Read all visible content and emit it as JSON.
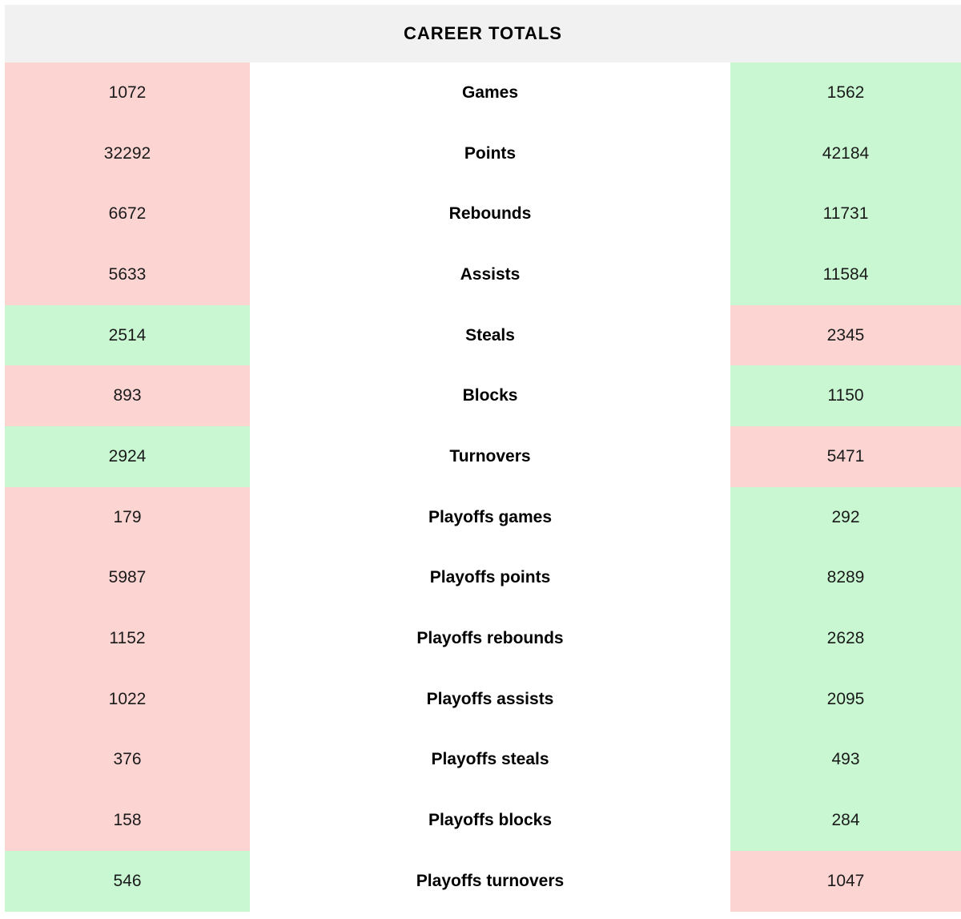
{
  "colors": {
    "green_bg": "#c9f7d2",
    "red_bg": "#fcd5d3",
    "header_bg": "#f1f1f2",
    "label_text": "#000000",
    "value_text": "#1a1a1a"
  },
  "chart_data": {
    "type": "table",
    "title": "CAREER TOTALS",
    "columns": [
      "left_total",
      "stat",
      "right_total"
    ],
    "rows": [
      {
        "stat": "Games",
        "left": "1072",
        "right": "1562",
        "left_color": "red",
        "right_color": "green"
      },
      {
        "stat": "Points",
        "left": "32292",
        "right": "42184",
        "left_color": "red",
        "right_color": "green"
      },
      {
        "stat": "Rebounds",
        "left": "6672",
        "right": "11731",
        "left_color": "red",
        "right_color": "green"
      },
      {
        "stat": "Assists",
        "left": "5633",
        "right": "11584",
        "left_color": "red",
        "right_color": "green"
      },
      {
        "stat": "Steals",
        "left": "2514",
        "right": "2345",
        "left_color": "green",
        "right_color": "red"
      },
      {
        "stat": "Blocks",
        "left": "893",
        "right": "1150",
        "left_color": "red",
        "right_color": "green"
      },
      {
        "stat": "Turnovers",
        "left": "2924",
        "right": "5471",
        "left_color": "green",
        "right_color": "red"
      },
      {
        "stat": "Playoffs games",
        "left": "179",
        "right": "292",
        "left_color": "red",
        "right_color": "green"
      },
      {
        "stat": "Playoffs points",
        "left": "5987",
        "right": "8289",
        "left_color": "red",
        "right_color": "green"
      },
      {
        "stat": "Playoffs rebounds",
        "left": "1152",
        "right": "2628",
        "left_color": "red",
        "right_color": "green"
      },
      {
        "stat": "Playoffs assists",
        "left": "1022",
        "right": "2095",
        "left_color": "red",
        "right_color": "green"
      },
      {
        "stat": "Playoffs steals",
        "left": "376",
        "right": "493",
        "left_color": "red",
        "right_color": "green"
      },
      {
        "stat": "Playoffs blocks",
        "left": "158",
        "right": "284",
        "left_color": "red",
        "right_color": "green"
      },
      {
        "stat": "Playoffs turnovers",
        "left": "546",
        "right": "1047",
        "left_color": "green",
        "right_color": "red"
      }
    ]
  }
}
